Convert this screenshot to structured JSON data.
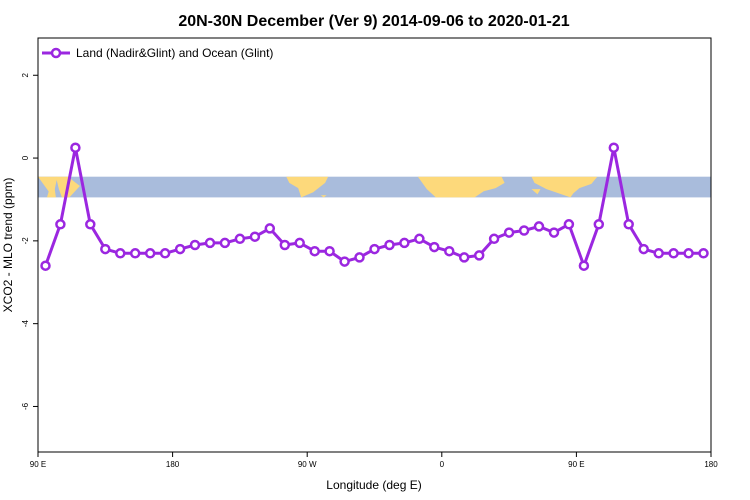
{
  "chart_data": {
    "type": "line",
    "title": "20N-30N December (Ver 9)   2014-09-06 to 2020-01-21",
    "xlabel": "Longitude (deg E)",
    "ylabel": "XCO2 - MLO trend (ppm)",
    "xlim": [
      90,
      540
    ],
    "ylim": [
      -7.1,
      2.9
    ],
    "x_ticks": [
      {
        "value": 90,
        "label": "90 E"
      },
      {
        "value": 180,
        "label": "180"
      },
      {
        "value": 270,
        "label": "90 W"
      },
      {
        "value": 360,
        "label": "0"
      },
      {
        "value": 450,
        "label": "90 E"
      },
      {
        "value": 540,
        "label": "180"
      }
    ],
    "y_ticks": [
      {
        "value": 2,
        "label": "2"
      },
      {
        "value": 0,
        "label": "0"
      },
      {
        "value": -2,
        "label": "-2"
      },
      {
        "value": -4,
        "label": "-4"
      },
      {
        "value": -6,
        "label": "-6"
      }
    ],
    "map_band": {
      "ymin": -0.95,
      "ymax": -0.45,
      "ocean_color": "#a9bcdc",
      "land_color": "#fdd97b"
    },
    "legend": {
      "position": "top-left"
    },
    "series": [
      {
        "name": "Land (Nadir&Glint) and Ocean (Glint)",
        "color": "#9b27e0",
        "x": [
          95,
          105,
          115,
          125,
          135,
          145,
          155,
          165,
          175,
          185,
          195,
          205,
          215,
          225,
          235,
          245,
          255,
          265,
          275,
          285,
          295,
          305,
          315,
          325,
          335,
          345,
          355,
          365,
          375,
          385,
          395,
          405,
          415,
          425,
          435,
          445,
          455,
          465,
          475,
          485,
          495,
          505,
          515,
          525,
          535
        ],
        "y": [
          -2.6,
          -1.6,
          0.25,
          -1.6,
          -2.2,
          -2.3,
          -2.3,
          -2.3,
          -2.3,
          -2.2,
          -2.1,
          -2.05,
          -2.05,
          -1.95,
          -1.9,
          -1.7,
          -2.1,
          -2.05,
          -2.25,
          -2.25,
          -2.5,
          -2.4,
          -2.2,
          -2.1,
          -2.05,
          -1.95,
          -2.15,
          -2.25,
          -2.4,
          -2.35,
          -1.95,
          -1.8,
          -1.75,
          -1.65,
          -1.8,
          -1.6,
          -2.6,
          -1.6,
          0.25,
          -1.6,
          -2.2,
          -2.3,
          -2.3,
          -2.3,
          -2.3
        ]
      }
    ]
  }
}
